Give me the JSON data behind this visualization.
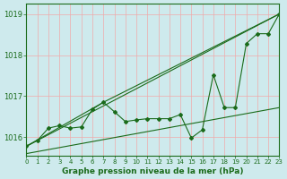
{
  "title": "Graphe pression niveau de la mer (hPa)",
  "background_color": "#ceeaed",
  "grid_color": "#f0aaaa",
  "line_color": "#1a6b1a",
  "x_min": 0,
  "x_max": 23,
  "y_min": 1015.55,
  "y_max": 1019.25,
  "y_ticks": [
    1016,
    1017,
    1018,
    1019
  ],
  "x_ticks": [
    0,
    1,
    2,
    3,
    4,
    5,
    6,
    7,
    8,
    9,
    10,
    11,
    12,
    13,
    14,
    15,
    16,
    17,
    18,
    19,
    20,
    21,
    22,
    23
  ],
  "main_line": [
    1015.78,
    1015.92,
    1016.22,
    1016.28,
    1016.22,
    1016.25,
    1016.68,
    1016.85,
    1016.62,
    1016.38,
    1016.42,
    1016.45,
    1016.45,
    1016.45,
    1016.55,
    1015.98,
    1016.18,
    1017.52,
    1016.72,
    1016.72,
    1018.28,
    1018.52,
    1018.52,
    1019.0
  ],
  "straight_lines": [
    {
      "x": [
        0,
        23
      ],
      "y": [
        1015.78,
        1019.0
      ]
    },
    {
      "x": [
        0,
        7
      ],
      "y": [
        1015.78,
        1016.85
      ]
    },
    {
      "x": [
        7,
        23
      ],
      "y": [
        1016.85,
        1019.0
      ]
    },
    {
      "x": [
        0,
        23
      ],
      "y": [
        1015.6,
        1016.72
      ]
    }
  ]
}
